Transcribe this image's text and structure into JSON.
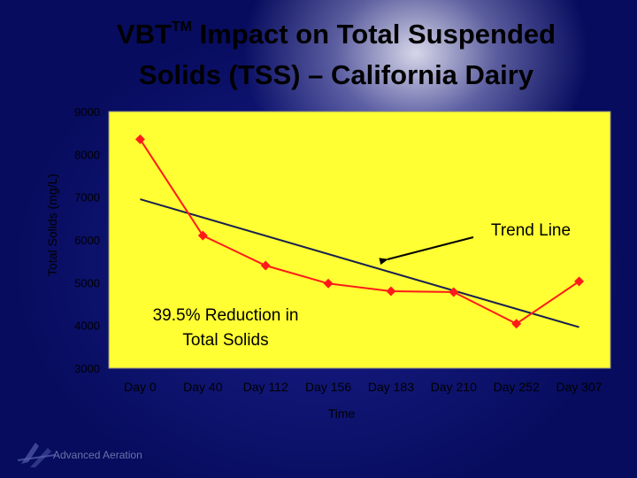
{
  "title": {
    "prefix": "VBT",
    "superscript": "TM",
    "line1_rest": " Impact on Total Suspended",
    "line2": "Solids (TSS) – California Dairy"
  },
  "colors": {
    "plot_bg": "#ffff33",
    "series": "#ff1a1a",
    "trend": "#1a2050",
    "background": "#07106b"
  },
  "chart_data": {
    "type": "line",
    "ylabel": "Total Solids (mg/L)",
    "xlabel": "Time",
    "ylim": [
      3000,
      9000
    ],
    "yticks": [
      3000,
      4000,
      5000,
      6000,
      7000,
      8000,
      9000
    ],
    "categories": [
      "Day 0",
      "Day 40",
      "Day 112",
      "Day 156",
      "Day 183",
      "Day 210",
      "Day 252",
      "Day 307"
    ],
    "series": [
      {
        "values": [
          8350,
          6100,
          5400,
          4980,
          4800,
          4780,
          4040,
          5030
        ]
      }
    ],
    "trend_line": {
      "label": "Trend Line",
      "start": 6950,
      "end": 3960
    },
    "annotations": [
      {
        "text_line1": "39.5% Reduction in",
        "text_line2": "Total Solids"
      }
    ],
    "grid": false,
    "legend": "none"
  },
  "logo": {
    "text": "Advanced Aeration"
  }
}
